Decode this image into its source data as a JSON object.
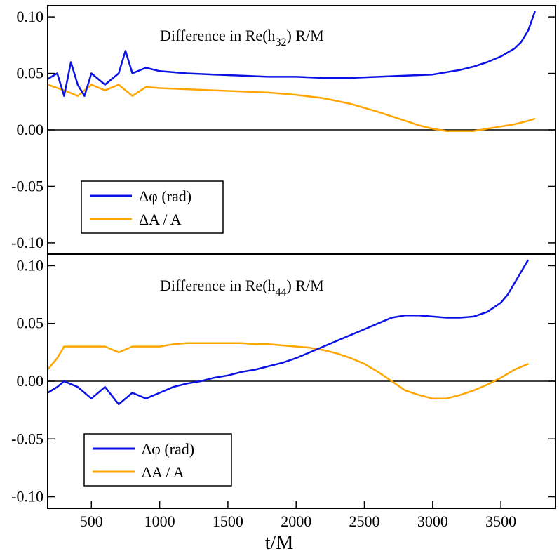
{
  "colors": {
    "phase": "#0a12e6",
    "amp": "#ffa500",
    "axis": "#000000",
    "background": "#ffffff"
  },
  "xlabel": "t/M",
  "chart_data": [
    {
      "type": "line",
      "title_prefix": "Difference in Re(h",
      "title_sub": "32",
      "title_suffix": ") R/M",
      "xlim": [
        180,
        3900
      ],
      "ylim": [
        -0.11,
        0.11
      ],
      "yticks": [
        "0.10",
        "0.05",
        "0.00",
        "-0.05",
        "-0.10"
      ],
      "ytick_values": [
        0.1,
        0.05,
        0.0,
        -0.05,
        -0.1
      ],
      "zero_line": true,
      "legend_position": "bottom-left",
      "series": [
        {
          "name": "Δφ (rad)",
          "color": "#0a12e6",
          "x": [
            180,
            250,
            300,
            350,
            400,
            450,
            500,
            600,
            700,
            750,
            800,
            900,
            1000,
            1100,
            1200,
            1400,
            1600,
            1800,
            2000,
            2200,
            2400,
            2600,
            2800,
            3000,
            3200,
            3300,
            3400,
            3500,
            3600,
            3650,
            3700,
            3750
          ],
          "y": [
            0.045,
            0.05,
            0.03,
            0.06,
            0.04,
            0.03,
            0.05,
            0.04,
            0.05,
            0.07,
            0.05,
            0.055,
            0.052,
            0.051,
            0.05,
            0.049,
            0.048,
            0.047,
            0.047,
            0.046,
            0.046,
            0.047,
            0.048,
            0.049,
            0.053,
            0.056,
            0.06,
            0.065,
            0.072,
            0.078,
            0.088,
            0.105
          ]
        },
        {
          "name": "ΔA / A",
          "color": "#ffa500",
          "x": [
            180,
            300,
            400,
            500,
            600,
            700,
            800,
            900,
            1000,
            1200,
            1400,
            1600,
            1800,
            2000,
            2200,
            2400,
            2600,
            2800,
            2900,
            3000,
            3100,
            3200,
            3300,
            3400,
            3500,
            3600,
            3700,
            3750
          ],
          "y": [
            0.04,
            0.035,
            0.03,
            0.04,
            0.035,
            0.04,
            0.03,
            0.038,
            0.037,
            0.036,
            0.035,
            0.034,
            0.033,
            0.031,
            0.028,
            0.023,
            0.016,
            0.008,
            0.004,
            0.001,
            -0.001,
            -0.001,
            -0.001,
            0.001,
            0.003,
            0.005,
            0.008,
            0.01
          ]
        }
      ]
    },
    {
      "type": "line",
      "title_prefix": "Difference in Re(h",
      "title_sub": "44",
      "title_suffix": ") R/M",
      "xlim": [
        180,
        3900
      ],
      "ylim": [
        -0.11,
        0.11
      ],
      "xticks": [
        "500",
        "1000",
        "1500",
        "2000",
        "2500",
        "3000",
        "3500"
      ],
      "xtick_values": [
        500,
        1000,
        1500,
        2000,
        2500,
        3000,
        3500
      ],
      "yticks": [
        "0.10",
        "0.05",
        "0.00",
        "-0.05",
        "-0.10"
      ],
      "ytick_values": [
        0.1,
        0.05,
        0.0,
        -0.05,
        -0.1
      ],
      "zero_line": true,
      "legend_position": "bottom-left",
      "series": [
        {
          "name": "Δφ (rad)",
          "color": "#0a12e6",
          "x": [
            180,
            250,
            300,
            400,
            500,
            600,
            700,
            800,
            900,
            1000,
            1100,
            1200,
            1300,
            1400,
            1500,
            1600,
            1700,
            1800,
            1900,
            2000,
            2100,
            2200,
            2300,
            2400,
            2500,
            2600,
            2700,
            2800,
            2900,
            3000,
            3100,
            3200,
            3300,
            3400,
            3500,
            3550,
            3600,
            3650,
            3700
          ],
          "y": [
            -0.01,
            -0.005,
            0.0,
            -0.005,
            -0.015,
            -0.005,
            -0.02,
            -0.01,
            -0.015,
            -0.01,
            -0.005,
            -0.002,
            0.0,
            0.003,
            0.005,
            0.008,
            0.01,
            0.013,
            0.016,
            0.02,
            0.025,
            0.03,
            0.035,
            0.04,
            0.045,
            0.05,
            0.055,
            0.057,
            0.057,
            0.056,
            0.055,
            0.055,
            0.056,
            0.06,
            0.068,
            0.075,
            0.085,
            0.095,
            0.105
          ]
        },
        {
          "name": "ΔA / A",
          "color": "#ffa500",
          "x": [
            180,
            250,
            300,
            400,
            500,
            600,
            700,
            800,
            900,
            1000,
            1100,
            1200,
            1300,
            1400,
            1500,
            1600,
            1700,
            1800,
            1900,
            2000,
            2100,
            2200,
            2300,
            2400,
            2500,
            2600,
            2700,
            2800,
            2900,
            3000,
            3100,
            3200,
            3300,
            3400,
            3500,
            3600,
            3700
          ],
          "y": [
            0.01,
            0.02,
            0.03,
            0.03,
            0.03,
            0.03,
            0.025,
            0.03,
            0.03,
            0.03,
            0.032,
            0.033,
            0.033,
            0.033,
            0.033,
            0.033,
            0.032,
            0.032,
            0.031,
            0.03,
            0.029,
            0.027,
            0.024,
            0.02,
            0.015,
            0.008,
            0.0,
            -0.008,
            -0.012,
            -0.015,
            -0.015,
            -0.012,
            -0.008,
            -0.003,
            0.003,
            0.01,
            0.015
          ]
        }
      ]
    }
  ],
  "legend_labels": [
    "Δφ (rad)",
    "ΔA / A"
  ]
}
